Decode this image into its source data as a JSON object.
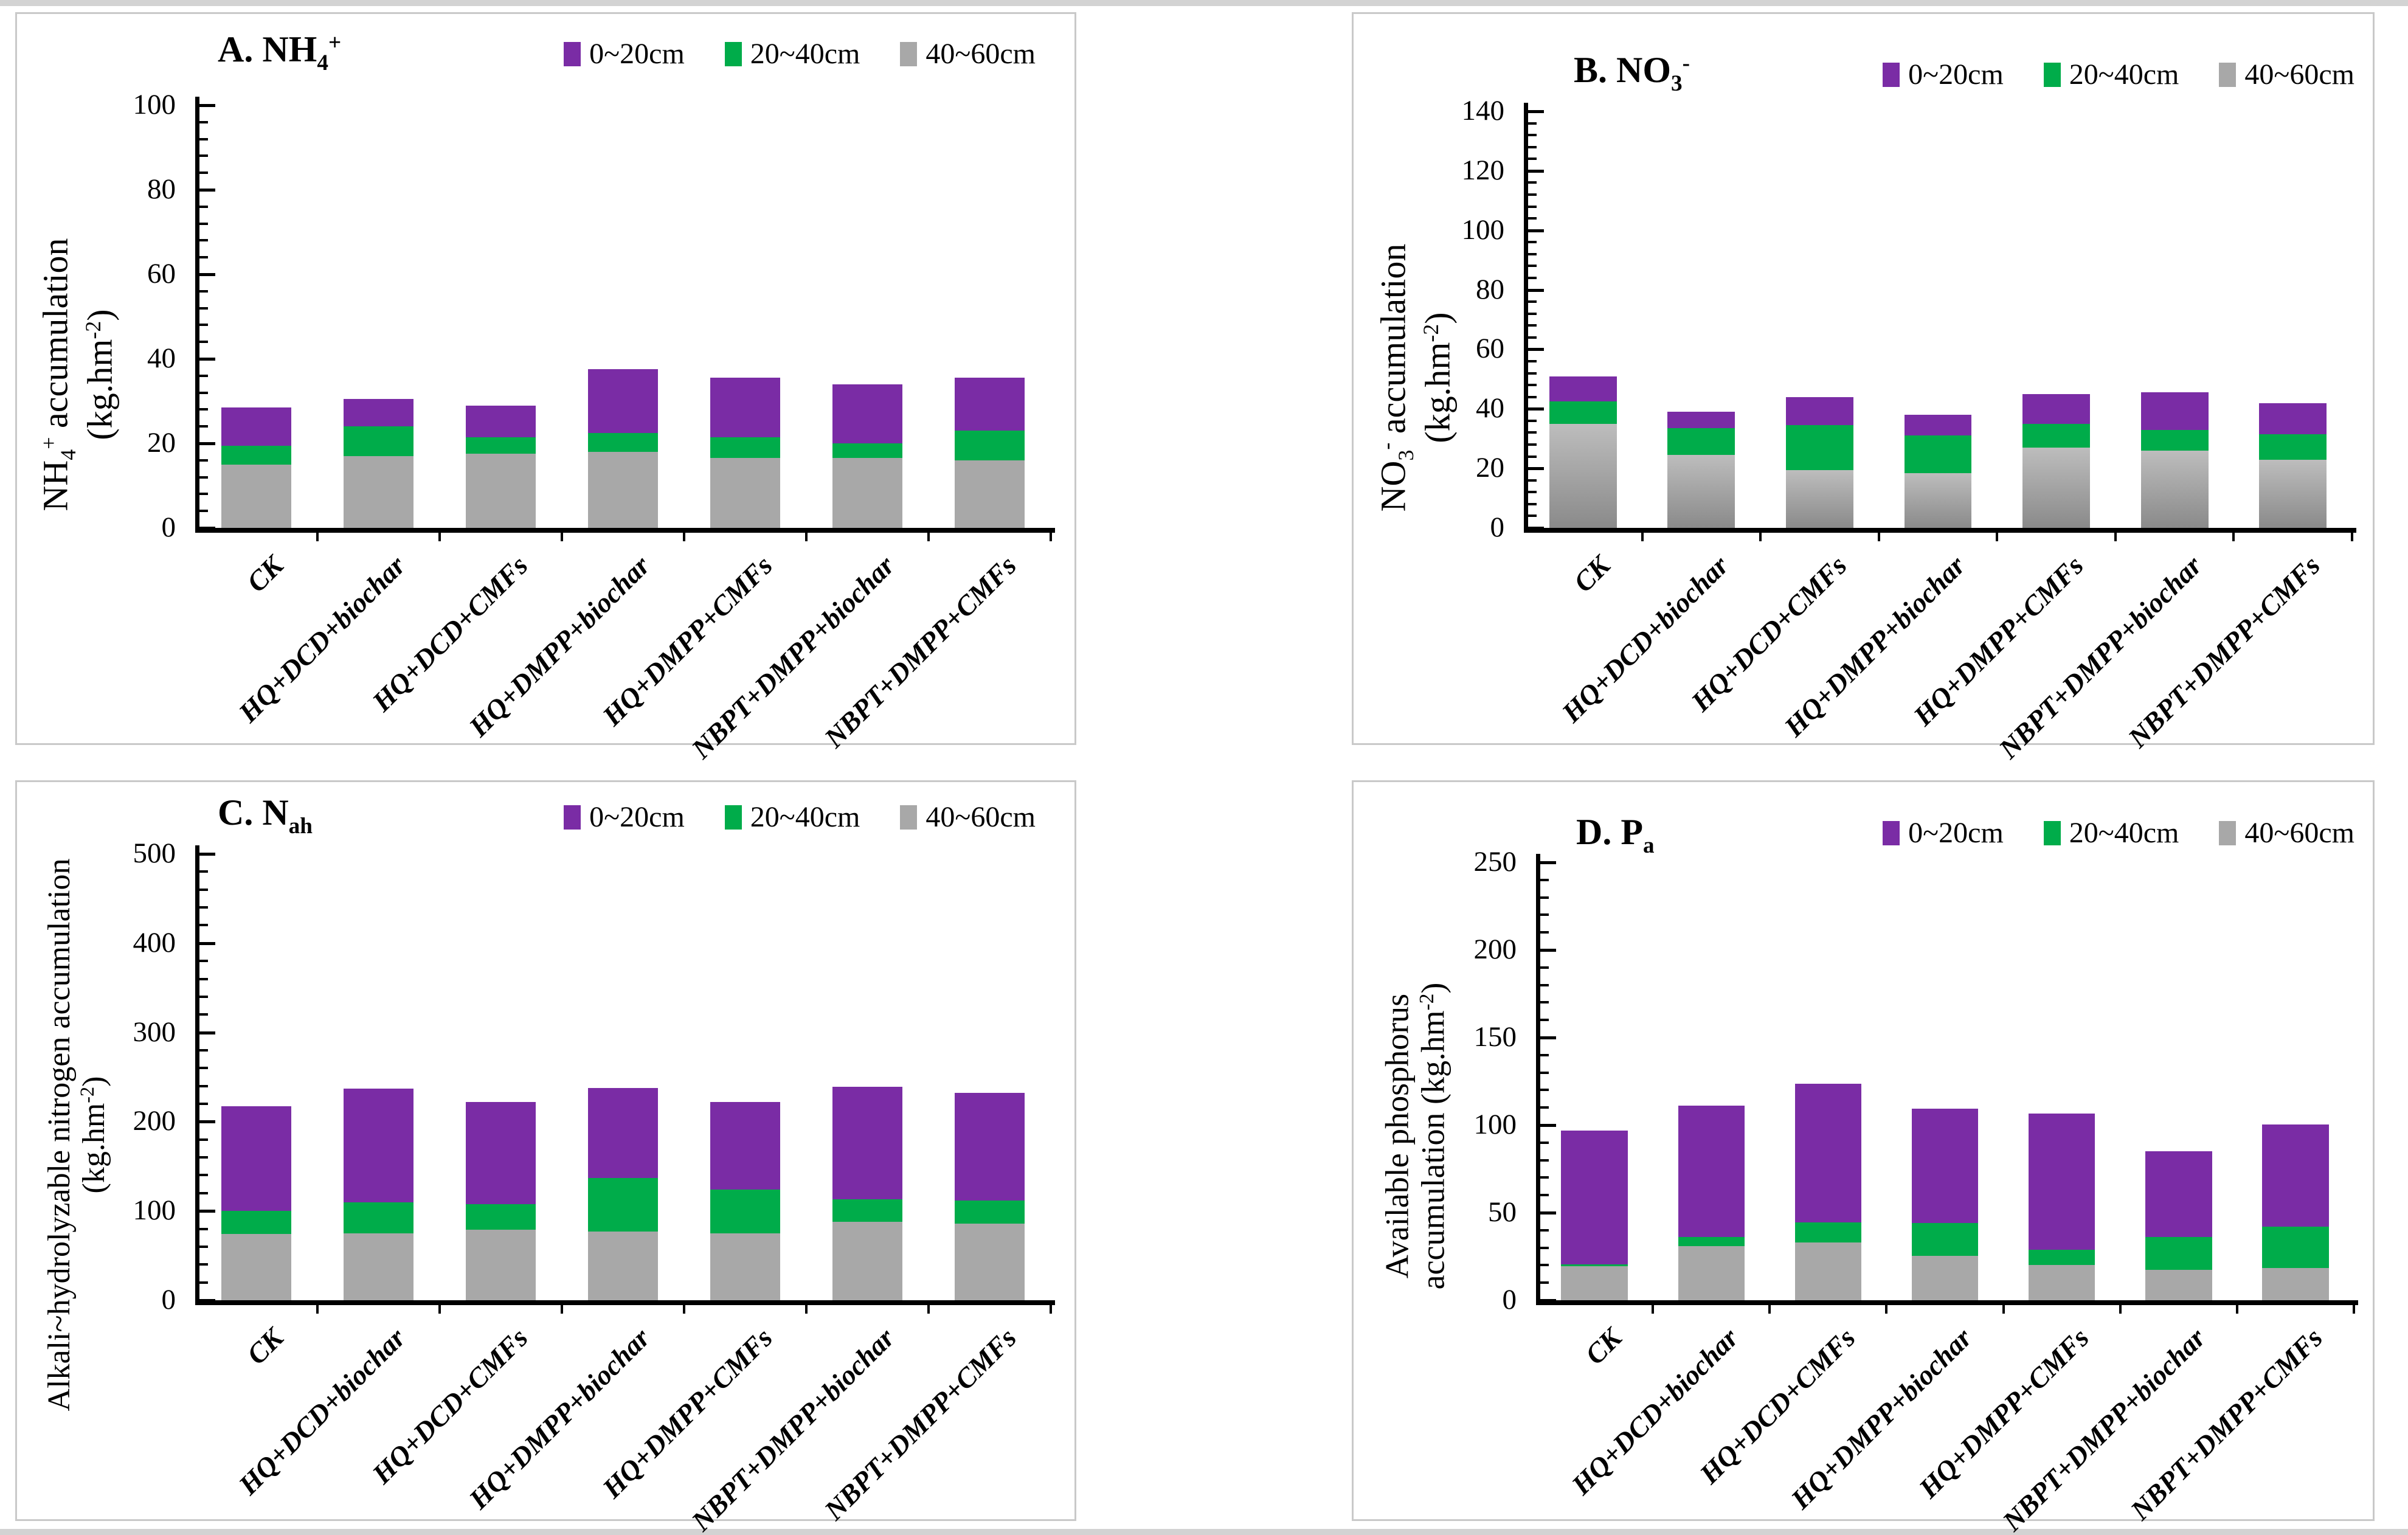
{
  "page": {
    "background": "#ffffff",
    "edge_strip_color": "#d3d3d3",
    "panel_border_color": "#c9c9c9"
  },
  "figure": {
    "categories": [
      "CK",
      "HQ+DCD+biochar",
      "HQ+DCD+CMFs",
      "HQ+DMPP+biochar",
      "HQ+DMPP+CMFs",
      "NBPT+DMPP+biochar",
      "NBPT+DMPP+CMFs"
    ],
    "series_names": [
      "0~20cm",
      "20~40cm",
      "40~60cm"
    ],
    "colors": {
      "0~20cm": "#7A2CA5",
      "20~40cm": "#00AC4A",
      "40~60cm": "#A8A8A8"
    },
    "legend_position": "top-right",
    "unit_label_text": "(kg.hm-2)"
  },
  "chart_data": [
    {
      "panel": "A",
      "type": "bar",
      "stacked": true,
      "title_text": "A. NH4+",
      "title_rich": [
        {
          "t": "A. NH"
        },
        {
          "t": "4",
          "v": "sub"
        },
        {
          "t": "+",
          "v": "sup"
        }
      ],
      "ylabel_text": "NH4+ accumulation (kg.hm-2)",
      "ylabel_lines": [
        [
          {
            "t": "NH"
          },
          {
            "t": "4",
            "v": "sub"
          },
          {
            "t": "+",
            "v": "sup"
          },
          {
            "t": " accumulation"
          }
        ],
        [
          {
            "t": "(kg.hm"
          },
          {
            "t": "-2",
            "v": "sup"
          },
          {
            "t": ")"
          }
        ]
      ],
      "ylim": [
        0,
        100
      ],
      "ytick_step": 20,
      "minor_divisions": 5,
      "grid": false,
      "categories": [
        "CK",
        "HQ+DCD+biochar",
        "HQ+DCD+CMFs",
        "HQ+DMPP+biochar",
        "HQ+DMPP+CMFs",
        "NBPT+DMPP+biochar",
        "NBPT+DMPP+CMFs"
      ],
      "series": [
        {
          "name": "0~20cm",
          "color": "#7A2CA5",
          "values": [
            28.5,
            30.5,
            29,
            37.5,
            35.5,
            34,
            35.5
          ]
        },
        {
          "name": "20~40cm",
          "color": "#00AC4A",
          "values": [
            19.5,
            24,
            21.5,
            22.5,
            21.5,
            20,
            23
          ]
        },
        {
          "name": "40~60cm",
          "color": "#A8A8A8",
          "values": [
            15,
            17,
            17.5,
            18,
            16.5,
            16.5,
            16
          ]
        }
      ]
    },
    {
      "panel": "B",
      "type": "bar",
      "stacked": true,
      "title_text": "B. NO3-",
      "title_rich": [
        {
          "t": "B. NO"
        },
        {
          "t": "3",
          "v": "sub"
        },
        {
          "t": "-",
          "v": "sup"
        }
      ],
      "ylabel_text": "NO3- accumulation (kg.hm-2)",
      "ylabel_lines": [
        [
          {
            "t": "NO"
          },
          {
            "t": "3",
            "v": "sub"
          },
          {
            "t": "-",
            "v": "sup"
          },
          {
            "t": " accumulation"
          }
        ],
        [
          {
            "t": "(kg.hm"
          },
          {
            "t": "-2",
            "v": "sup"
          },
          {
            "t": ")"
          }
        ]
      ],
      "ylim": [
        0,
        140
      ],
      "ytick_step": 20,
      "minor_divisions": 5,
      "grid": false,
      "categories": [
        "CK",
        "HQ+DCD+biochar",
        "HQ+DCD+CMFs",
        "HQ+DMPP+biochar",
        "HQ+DMPP+CMFs",
        "NBPT+DMPP+biochar",
        "NBPT+DMPP+CMFs"
      ],
      "series": [
        {
          "name": "0~20cm",
          "color": "#7A2CA5",
          "values": [
            51,
            39,
            44,
            38,
            45,
            45.5,
            42
          ]
        },
        {
          "name": "20~40cm",
          "color": "#00AC4A",
          "values": [
            42.5,
            33.5,
            34.5,
            31,
            35,
            33,
            31.5
          ]
        },
        {
          "name": "40~60cm",
          "color": "#A8A8A8",
          "gradient_top": "#BDBDBD",
          "gradient_bottom": "#8A8A8A",
          "values": [
            35,
            24.5,
            19.5,
            18.5,
            27,
            26,
            23
          ]
        }
      ]
    },
    {
      "panel": "C",
      "type": "bar",
      "stacked": true,
      "title_text": "C. Nah",
      "title_rich": [
        {
          "t": "C. N"
        },
        {
          "t": "ah",
          "v": "sub"
        }
      ],
      "ylabel_text": "Alkali~hydrolyzable nitrogen accumulation (kg.hm-2)",
      "ylabel_lines": [
        [
          {
            "t": "Alkali~hydrolyzable nitrogen accumulation"
          }
        ],
        [
          {
            "t": "(kg.hm"
          },
          {
            "t": "-2",
            "v": "sup"
          },
          {
            "t": ")"
          }
        ]
      ],
      "ylim": [
        0,
        500
      ],
      "ytick_step": 100,
      "minor_divisions": 5,
      "grid": false,
      "categories": [
        "CK",
        "HQ+DCD+biochar",
        "HQ+DCD+CMFs",
        "HQ+DMPP+biochar",
        "HQ+DMPP+CMFs",
        "NBPT+DMPP+biochar",
        "NBPT+DMPP+CMFs"
      ],
      "series": [
        {
          "name": "0~20cm",
          "color": "#7A2CA5",
          "values": [
            217,
            237,
            222,
            238,
            222,
            239,
            232
          ]
        },
        {
          "name": "20~40cm",
          "color": "#00AC4A",
          "values": [
            100,
            110,
            108,
            137,
            124,
            113,
            112
          ]
        },
        {
          "name": "40~60cm",
          "color": "#A8A8A8",
          "values": [
            74,
            75,
            79,
            77,
            75,
            88,
            86
          ]
        }
      ]
    },
    {
      "panel": "D",
      "type": "bar",
      "stacked": true,
      "title_text": "D. Pa",
      "title_rich": [
        {
          "t": "D. P"
        },
        {
          "t": "a",
          "v": "sub"
        }
      ],
      "ylabel_text": "Available phosphorus accumulation (kg.hm-2)",
      "ylabel_lines": [
        [
          {
            "t": "Available phosphorus"
          }
        ],
        [
          {
            "t": "accumulation (kg.hm"
          },
          {
            "t": "-2",
            "v": "sup"
          },
          {
            "t": ")"
          }
        ]
      ],
      "ylim": [
        0,
        250
      ],
      "ytick_step": 50,
      "minor_divisions": 5,
      "grid": false,
      "categories": [
        "CK",
        "HQ+DCD+biochar",
        "HQ+DCD+CMFs",
        "HQ+DMPP+biochar",
        "HQ+DMPP+CMFs",
        "NBPT+DMPP+biochar",
        "NBPT+DMPP+CMFs"
      ],
      "series": [
        {
          "name": "0~20cm",
          "color": "#7A2CA5",
          "values": [
            97,
            111,
            123.5,
            109.5,
            106.5,
            85,
            100.5
          ]
        },
        {
          "name": "20~40cm",
          "color": "#00AC4A",
          "values": [
            20.5,
            36,
            44.5,
            44,
            29,
            36,
            42
          ]
        },
        {
          "name": "40~60cm",
          "color": "#A8A8A8",
          "values": [
            19.5,
            31,
            33,
            25.5,
            20,
            17.5,
            18.5
          ]
        }
      ]
    }
  ]
}
